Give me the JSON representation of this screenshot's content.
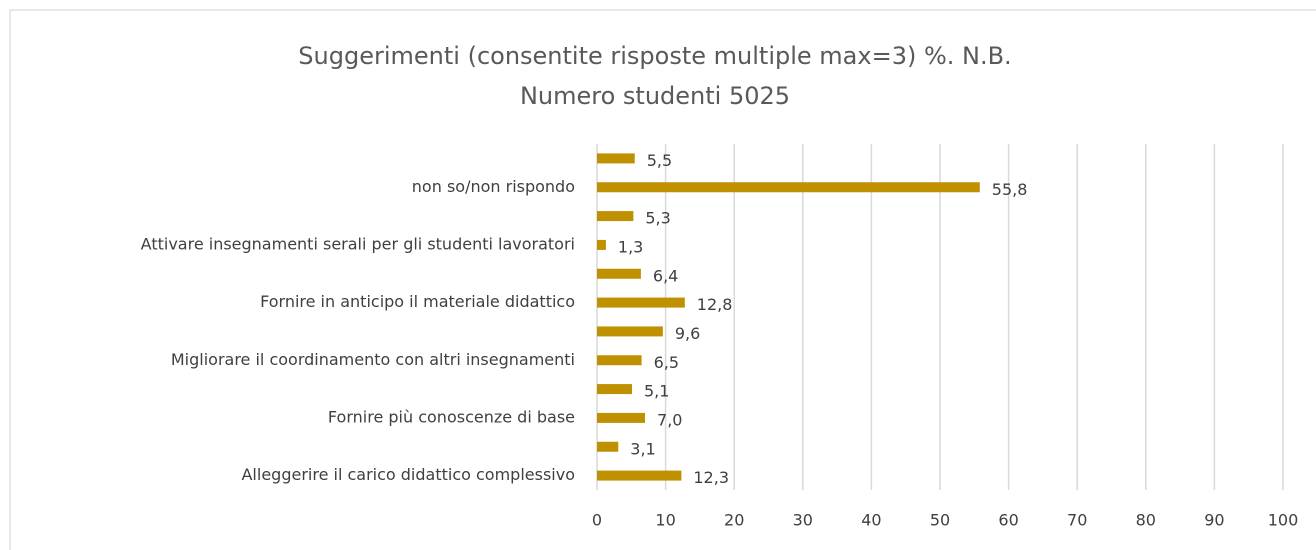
{
  "chart_data": {
    "type": "bar",
    "orientation": "horizontal",
    "title": "Suggerimenti (consentite risposte multiple max=3) %. N.B. Numero studenti 5025",
    "categories": [
      null,
      "non so/non rispondo",
      null,
      "Attivare insegnamenti serali per gli studenti lavoratori",
      null,
      "Fornire in anticipo il materiale didattico",
      null,
      "Migliorare il coordinamento con altri insegnamenti",
      null,
      "Fornire più conoscenze di base",
      null,
      "Alleggerire il carico didattico complessivo"
    ],
    "values": [
      5.5,
      55.8,
      5.3,
      1.3,
      6.4,
      12.8,
      9.6,
      6.5,
      5.1,
      7.0,
      3.1,
      12.3
    ],
    "value_labels": [
      "5,5",
      "55,8",
      "5,3",
      "1,3",
      "6,4",
      "12,8",
      "9,6",
      "6,5",
      "5,1",
      "7,0",
      "3,1",
      "12,3"
    ],
    "color": "#bf9000",
    "xlim": [
      0,
      100
    ],
    "xticks": [
      0,
      10,
      20,
      30,
      40,
      50,
      60,
      70,
      80,
      90,
      100
    ],
    "grid": true
  }
}
